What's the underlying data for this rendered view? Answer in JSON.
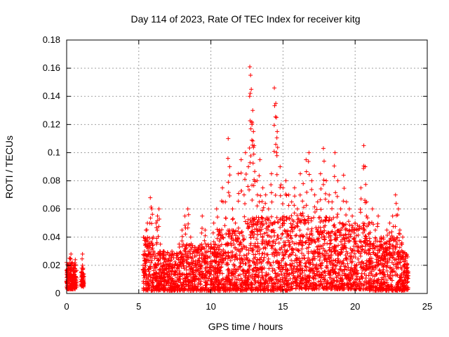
{
  "chart_data": {
    "type": "scatter",
    "title": "Day 114 of 2023, Rate Of TEC Index for receiver kitg",
    "xlabel": "GPS time / hours",
    "ylabel": "ROTI / TECUs",
    "xlim": [
      0,
      25
    ],
    "ylim": [
      0,
      0.18
    ],
    "x_ticks": [
      0,
      5,
      10,
      15,
      20,
      25
    ],
    "x_tick_labels": [
      "0",
      "5",
      "10",
      "15",
      "20",
      "25"
    ],
    "y_ticks": [
      0,
      0.02,
      0.04,
      0.06,
      0.08,
      0.1,
      0.12,
      0.14,
      0.16,
      0.18
    ],
    "y_tick_labels": [
      "0",
      "0.02",
      "0.04",
      "0.06",
      "0.08",
      "0.1",
      "0.12",
      "0.14",
      "0.16",
      "0.18"
    ],
    "grid": true,
    "marker": "+",
    "color": "#ff0000",
    "series": [
      {
        "name": "ROTI",
        "points": [
          [
            0.0,
            0.008
          ],
          [
            0.05,
            0.015
          ],
          [
            0.1,
            0.02
          ],
          [
            0.15,
            0.012
          ],
          [
            0.2,
            0.025
          ],
          [
            0.25,
            0.018
          ],
          [
            0.3,
            0.028
          ],
          [
            0.35,
            0.01
          ],
          [
            0.4,
            0.022
          ],
          [
            0.45,
            0.016
          ],
          [
            0.5,
            0.02
          ],
          [
            0.55,
            0.012
          ],
          [
            0.6,
            0.024
          ],
          [
            0.65,
            0.009
          ],
          [
            0.1,
            0.005
          ],
          [
            0.3,
            0.006
          ],
          [
            0.5,
            0.007
          ],
          [
            1.0,
            0.01
          ],
          [
            1.05,
            0.018
          ],
          [
            1.1,
            0.028
          ],
          [
            1.15,
            0.008
          ],
          [
            1.2,
            0.012
          ],
          [
            1.1,
            0.02
          ],
          [
            5.3,
            0.02
          ],
          [
            5.4,
            0.03
          ],
          [
            5.5,
            0.045
          ],
          [
            5.6,
            0.05
          ],
          [
            5.7,
            0.035
          ],
          [
            5.8,
            0.068
          ],
          [
            5.9,
            0.06
          ],
          [
            6.0,
            0.04
          ],
          [
            6.1,
            0.025
          ],
          [
            6.2,
            0.05
          ],
          [
            6.3,
            0.055
          ],
          [
            6.4,
            0.06
          ],
          [
            6.5,
            0.035
          ],
          [
            6.7,
            0.03
          ],
          [
            6.9,
            0.02
          ],
          [
            7.1,
            0.025
          ],
          [
            7.3,
            0.03
          ],
          [
            7.5,
            0.02
          ],
          [
            7.8,
            0.035
          ],
          [
            8.0,
            0.045
          ],
          [
            8.2,
            0.055
          ],
          [
            8.4,
            0.06
          ],
          [
            8.6,
            0.04
          ],
          [
            8.9,
            0.03
          ],
          [
            9.2,
            0.025
          ],
          [
            9.4,
            0.055
          ],
          [
            9.6,
            0.045
          ],
          [
            9.8,
            0.03
          ],
          [
            10.0,
            0.035
          ],
          [
            10.2,
            0.05
          ],
          [
            10.4,
            0.06
          ],
          [
            10.6,
            0.045
          ],
          [
            10.8,
            0.075
          ],
          [
            11.0,
            0.065
          ],
          [
            11.2,
            0.11
          ],
          [
            11.3,
            0.09
          ],
          [
            11.5,
            0.06
          ],
          [
            11.7,
            0.05
          ],
          [
            11.9,
            0.085
          ],
          [
            12.1,
            0.095
          ],
          [
            12.3,
            0.07
          ],
          [
            12.4,
            0.1
          ],
          [
            12.6,
            0.09
          ],
          [
            12.7,
            0.161
          ],
          [
            12.75,
            0.155
          ],
          [
            12.8,
            0.145
          ],
          [
            12.9,
            0.13
          ],
          [
            12.85,
            0.12
          ],
          [
            12.95,
            0.115
          ],
          [
            13.0,
            0.105
          ],
          [
            13.2,
            0.08
          ],
          [
            13.4,
            0.095
          ],
          [
            13.6,
            0.075
          ],
          [
            13.8,
            0.07
          ],
          [
            14.0,
            0.06
          ],
          [
            14.2,
            0.085
          ],
          [
            14.4,
            0.146
          ],
          [
            14.5,
            0.135
          ],
          [
            14.55,
            0.125
          ],
          [
            14.6,
            0.115
          ],
          [
            14.8,
            0.09
          ],
          [
            15.0,
            0.075
          ],
          [
            15.2,
            0.08
          ],
          [
            15.4,
            0.07
          ],
          [
            15.6,
            0.065
          ],
          [
            15.8,
            0.075
          ],
          [
            16.0,
            0.06
          ],
          [
            16.2,
            0.085
          ],
          [
            16.4,
            0.078
          ],
          [
            16.6,
            0.095
          ],
          [
            16.8,
            0.1
          ],
          [
            17.0,
            0.08
          ],
          [
            17.2,
            0.07
          ],
          [
            17.4,
            0.065
          ],
          [
            17.6,
            0.085
          ],
          [
            17.8,
            0.103
          ],
          [
            18.0,
            0.08
          ],
          [
            18.2,
            0.07
          ],
          [
            18.4,
            0.065
          ],
          [
            18.6,
            0.1
          ],
          [
            18.8,
            0.08
          ],
          [
            19.0,
            0.06
          ],
          [
            19.2,
            0.084
          ],
          [
            19.4,
            0.065
          ],
          [
            19.6,
            0.06
          ],
          [
            19.8,
            0.055
          ],
          [
            20.0,
            0.05
          ],
          [
            20.2,
            0.045
          ],
          [
            20.4,
            0.075
          ],
          [
            20.6,
            0.105
          ],
          [
            20.7,
            0.09
          ],
          [
            20.8,
            0.065
          ],
          [
            21.0,
            0.05
          ],
          [
            21.2,
            0.06
          ],
          [
            21.4,
            0.045
          ],
          [
            21.6,
            0.055
          ],
          [
            21.8,
            0.04
          ],
          [
            22.0,
            0.035
          ],
          [
            22.2,
            0.045
          ],
          [
            22.4,
            0.05
          ],
          [
            22.6,
            0.055
          ],
          [
            22.8,
            0.07
          ],
          [
            23.0,
            0.06
          ],
          [
            23.1,
            0.045
          ],
          [
            23.2,
            0.035
          ],
          [
            23.3,
            0.04
          ],
          [
            23.5,
            0.025
          ],
          [
            23.6,
            0.02
          ]
        ]
      }
    ],
    "density": {
      "description": "dense band of points (upper envelope of the band, in data units) between listed hour segments",
      "segments": [
        {
          "x_range": [
            0.0,
            0.7
          ],
          "y_min": 0.003,
          "y_max": 0.022
        },
        {
          "x_range": [
            1.0,
            1.2
          ],
          "y_min": 0.005,
          "y_max": 0.015
        },
        {
          "x_range": [
            5.3,
            6.0
          ],
          "y_min": 0.002,
          "y_max": 0.04
        },
        {
          "x_range": [
            6.0,
            8.0
          ],
          "y_min": 0.002,
          "y_max": 0.03
        },
        {
          "x_range": [
            8.0,
            10.5
          ],
          "y_min": 0.002,
          "y_max": 0.035
        },
        {
          "x_range": [
            10.5,
            12.5
          ],
          "y_min": 0.002,
          "y_max": 0.045
        },
        {
          "x_range": [
            12.5,
            15.5
          ],
          "y_min": 0.002,
          "y_max": 0.055
        },
        {
          "x_range": [
            15.5,
            18.5
          ],
          "y_min": 0.003,
          "y_max": 0.055
        },
        {
          "x_range": [
            18.5,
            21.0
          ],
          "y_min": 0.003,
          "y_max": 0.05
        },
        {
          "x_range": [
            21.0,
            23.0
          ],
          "y_min": 0.002,
          "y_max": 0.04
        },
        {
          "x_range": [
            23.0,
            23.7
          ],
          "y_min": 0.002,
          "y_max": 0.03
        }
      ]
    }
  }
}
